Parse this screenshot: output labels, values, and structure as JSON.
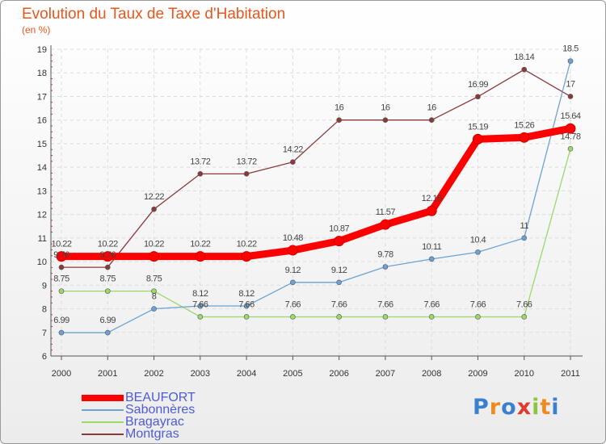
{
  "header": {
    "title": "Evolution du Taux de Taxe d'Habitation",
    "subtitle": "(en %)"
  },
  "logo": {
    "letters": [
      "P",
      "r",
      "o",
      "x",
      "i",
      "t",
      "i"
    ],
    "colors": [
      "#3b7fd1",
      "#f08a1e",
      "#3b7fd1",
      "#e03b2e",
      "#8cc63f",
      "#f08a1e",
      "#3b7fd1"
    ]
  },
  "chart_data": {
    "type": "line",
    "x": [
      "2000",
      "2001",
      "2002",
      "2003",
      "2004",
      "2005",
      "2006",
      "2007",
      "2008",
      "2009",
      "2010",
      "2011"
    ],
    "ylim": [
      6,
      19
    ],
    "yticks": [
      6,
      7,
      8,
      9,
      10,
      11,
      12,
      13,
      14,
      15,
      16,
      17,
      18,
      19
    ],
    "grid": true,
    "legend_position": "bottom-left",
    "series": [
      {
        "name": "BEAUFORT",
        "color": "#ff0000",
        "values": [
          10.22,
          10.22,
          10.22,
          10.22,
          10.22,
          10.48,
          10.87,
          11.57,
          12.15,
          15.19,
          15.26,
          15.64
        ],
        "labels": [
          "10.22",
          "10.22",
          "10.22",
          "10.22",
          "10.22",
          "10.48",
          "10.87",
          "11.57",
          "12.15",
          "15.19",
          "15.26",
          "15.64"
        ]
      },
      {
        "name": "Sabonnères",
        "color": "#6aa3d5",
        "values": [
          6.99,
          6.99,
          8,
          8.12,
          8.12,
          9.12,
          9.12,
          9.78,
          10.11,
          10.4,
          11,
          18.5
        ],
        "labels": [
          "6.99",
          "6.99",
          "8",
          "8.12",
          "8.12",
          "9.12",
          "9.12",
          "9.78",
          "10.11",
          "10.4",
          "11",
          "18.5"
        ]
      },
      {
        "name": "Bragayrac",
        "color": "#9ad96a",
        "values": [
          8.75,
          8.75,
          8.75,
          7.66,
          7.66,
          7.66,
          7.66,
          7.66,
          7.66,
          7.66,
          7.66,
          14.78
        ],
        "labels": [
          "8.75",
          "8.75",
          "8.75",
          "7.66",
          "7.66",
          "7.66",
          "7.66",
          "7.66",
          "7.66",
          "7.66",
          "7.66",
          "14.78"
        ]
      },
      {
        "name": "Montgras",
        "color": "#8b3a3a",
        "values": [
          9.76,
          9.76,
          12.22,
          13.72,
          13.72,
          14.22,
          16,
          16,
          16,
          16.99,
          18.14,
          17
        ],
        "labels": [
          "9.76",
          "9.76",
          "12.22",
          "13.72",
          "13.72",
          "14.22",
          "16",
          "16",
          "16",
          "16.99",
          "18.14",
          "17"
        ]
      }
    ]
  }
}
